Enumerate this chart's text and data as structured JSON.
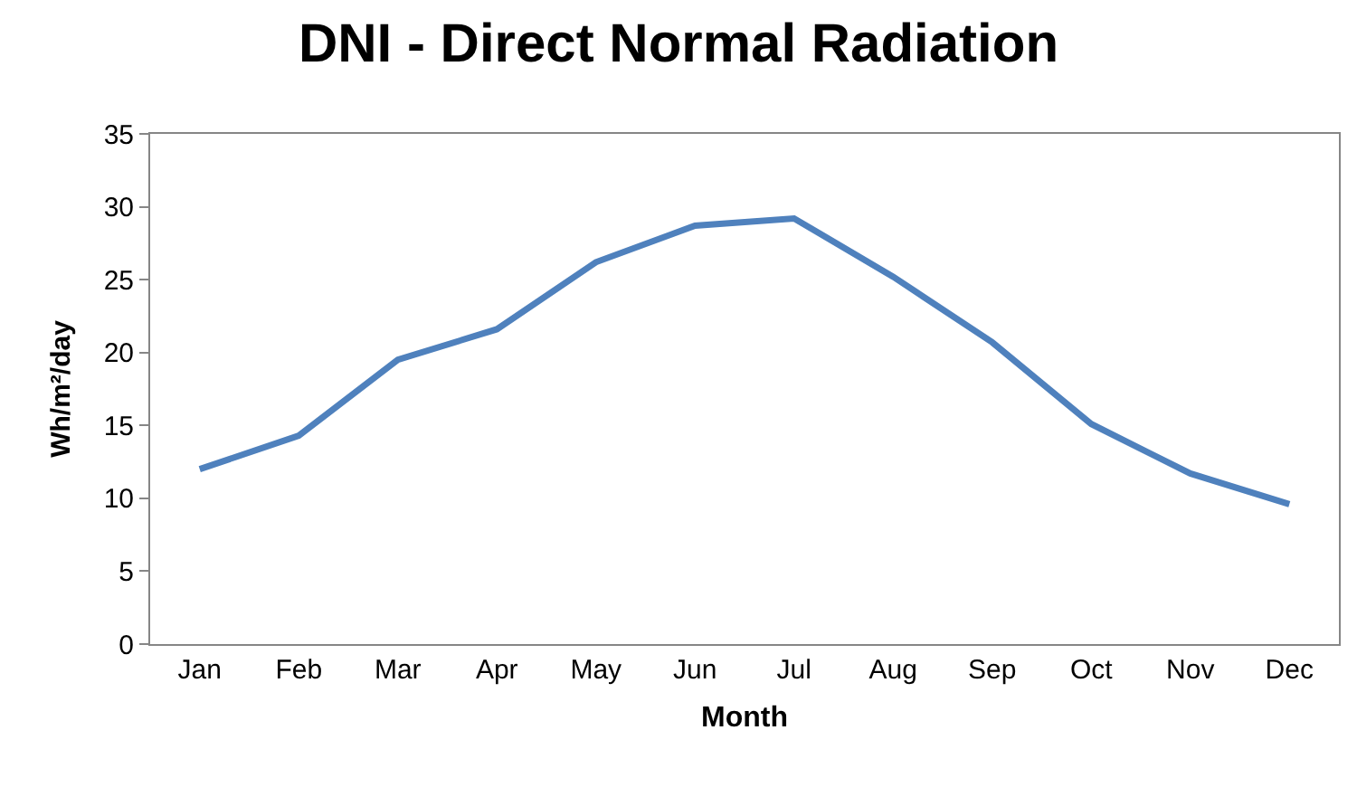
{
  "chart_data": {
    "type": "line",
    "title": "DNI - Direct Normal Radiation",
    "xlabel": "Month",
    "ylabel": "Wh/m²/day",
    "categories": [
      "Jan",
      "Feb",
      "Mar",
      "Apr",
      "May",
      "Jun",
      "Jul",
      "Aug",
      "Sep",
      "Oct",
      "Nov",
      "Dec"
    ],
    "series": [
      {
        "color": "#4f81bd",
        "values": [
          12.0,
          14.3,
          19.5,
          21.6,
          26.2,
          28.7,
          29.2,
          25.2,
          20.7,
          15.1,
          11.7,
          9.6
        ]
      }
    ],
    "ylim": [
      0,
      35
    ],
    "yticks": [
      0,
      5,
      10,
      15,
      20,
      25,
      30,
      35
    ],
    "grid": false,
    "marker": "none",
    "line_style": "solid"
  }
}
